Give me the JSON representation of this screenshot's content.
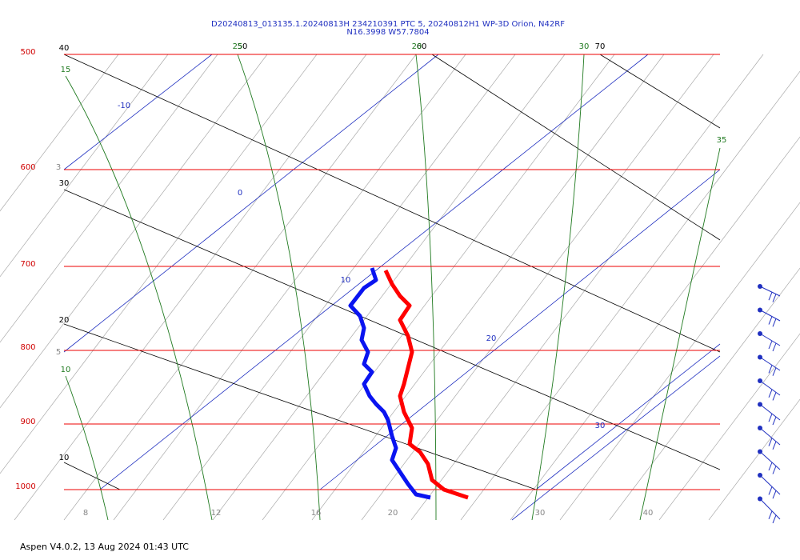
{
  "header": {
    "title": "D20240813_013135.1.20240813H 234210391 PTC 5, 20240812H1 WP-3D Orion, N42RF",
    "subtitle": "N16.3998 W57.7804"
  },
  "pressure_labels": [
    "500",
    "600",
    "700",
    "800",
    "900",
    "1000"
  ],
  "temperature_labels": [
    "8",
    "12",
    "16",
    "20",
    "30",
    "40"
  ],
  "isotherm_labels": [
    "-10",
    "0",
    "10",
    "20",
    "30"
  ],
  "dry_adiabat_labels": [
    "40",
    "50",
    "60",
    "70",
    "30",
    "20",
    "10"
  ],
  "moist_adiabat_labels": [
    "15",
    "25",
    "20",
    "30",
    "35",
    "10"
  ],
  "mixing_ratio_labels": [
    "3",
    "5"
  ],
  "footer": "Aspen V4.0.2, 13 Aug 2024  01:43 UTC"
}
